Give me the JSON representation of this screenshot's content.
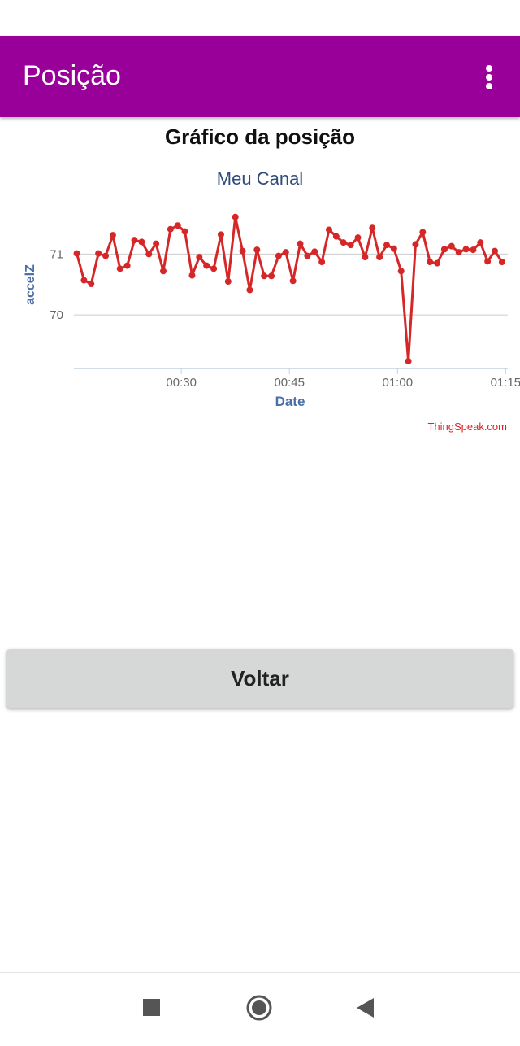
{
  "app_bar": {
    "title": "Posição"
  },
  "heading": "Gráfico da posição",
  "chart_data": {
    "type": "line",
    "title": "Meu Canal",
    "x_label": "Date",
    "y_label": "accelZ",
    "credit": "ThingSpeak.com",
    "color": "#d62728",
    "grid": true,
    "x": [
      15.5,
      16.5,
      17.5,
      18.5,
      19.5,
      20.5,
      21.5,
      22.5,
      23.5,
      24.5,
      25.5,
      26.5,
      27.5,
      28.5,
      29.5,
      30.5,
      31.5,
      32.5,
      33.5,
      34.5,
      35.5,
      36.5,
      37.5,
      38.5,
      39.5,
      40.5,
      41.5,
      42.5,
      43.5,
      44.5,
      45.5,
      46.5,
      47.5,
      48.5,
      49.5,
      50.5,
      51.5,
      52.5,
      53.5,
      54.5,
      55.5,
      56.5,
      57.5,
      58.5,
      59.5,
      60.5,
      61.5,
      62.5,
      63.5,
      64.5,
      65.5,
      66.5,
      67.5,
      68.5,
      69.5,
      70.5,
      71.5,
      72.5,
      73.5,
      74.5
    ],
    "values": [
      71.01,
      70.57,
      70.51,
      71.01,
      70.97,
      71.31,
      70.76,
      70.81,
      71.23,
      71.2,
      71.0,
      71.17,
      70.72,
      71.41,
      71.47,
      71.37,
      70.65,
      70.95,
      70.81,
      70.76,
      71.32,
      70.55,
      71.61,
      71.05,
      70.41,
      71.07,
      70.64,
      70.64,
      70.97,
      71.03,
      70.56,
      71.17,
      70.97,
      71.04,
      70.87,
      71.4,
      71.29,
      71.19,
      71.15,
      71.27,
      70.95,
      71.43,
      70.95,
      71.15,
      71.09,
      70.72,
      69.24,
      71.16,
      71.36,
      70.87,
      70.85,
      71.08,
      71.13,
      71.03,
      71.08,
      71.07,
      71.19,
      70.88,
      71.05,
      70.87
    ],
    "xlim": [
      15.1,
      75.3
    ],
    "xticks": [
      {
        "value": 30,
        "label": "00:30"
      },
      {
        "value": 45,
        "label": "00:45"
      },
      {
        "value": 60,
        "label": "01:00"
      },
      {
        "value": 75,
        "label": "01:15"
      }
    ],
    "ylim": [
      69.12,
      71.7
    ],
    "yticks": [
      70,
      71
    ]
  },
  "button": "Voltar"
}
